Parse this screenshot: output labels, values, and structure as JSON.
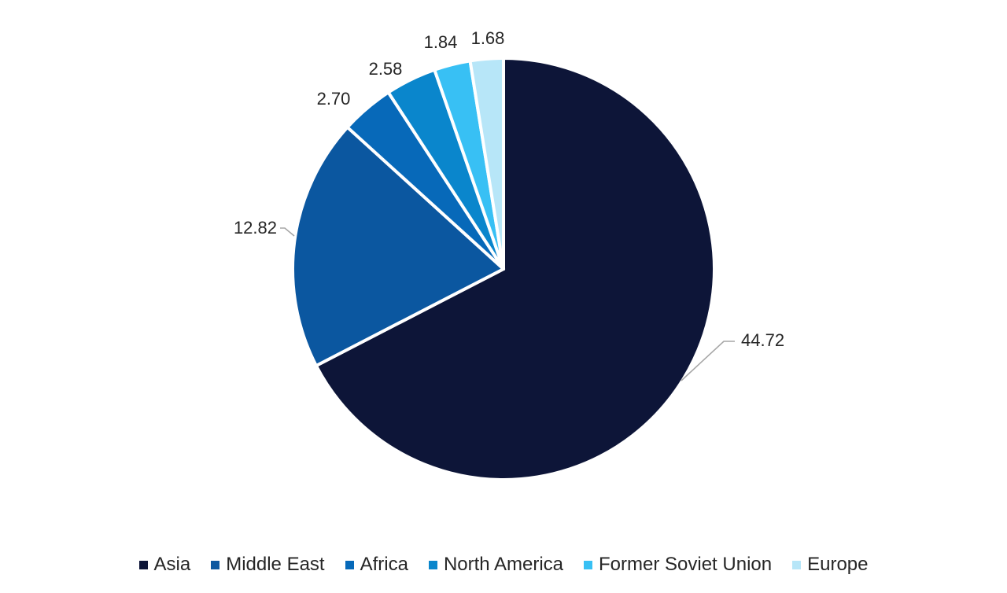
{
  "chart_data": {
    "type": "pie",
    "title": "",
    "slices": [
      {
        "label": "Asia",
        "value": 44.72,
        "value_label": "44.72",
        "color": "#0d1538"
      },
      {
        "label": "Middle East",
        "value": 12.82,
        "value_label": "12.82",
        "color": "#0b57a0"
      },
      {
        "label": "Africa",
        "value": 2.7,
        "value_label": "2.70",
        "color": "#0769b9"
      },
      {
        "label": "North America",
        "value": 2.58,
        "value_label": "2.58",
        "color": "#0a86cc"
      },
      {
        "label": "Former Soviet Union",
        "value": 1.84,
        "value_label": "1.84",
        "color": "#38c0f4"
      },
      {
        "label": "Europe",
        "value": 1.68,
        "value_label": "1.68",
        "color": "#b7e6f8"
      }
    ],
    "start_angle": "12 o'clock",
    "direction": "clockwise",
    "legend_position": "bottom"
  }
}
